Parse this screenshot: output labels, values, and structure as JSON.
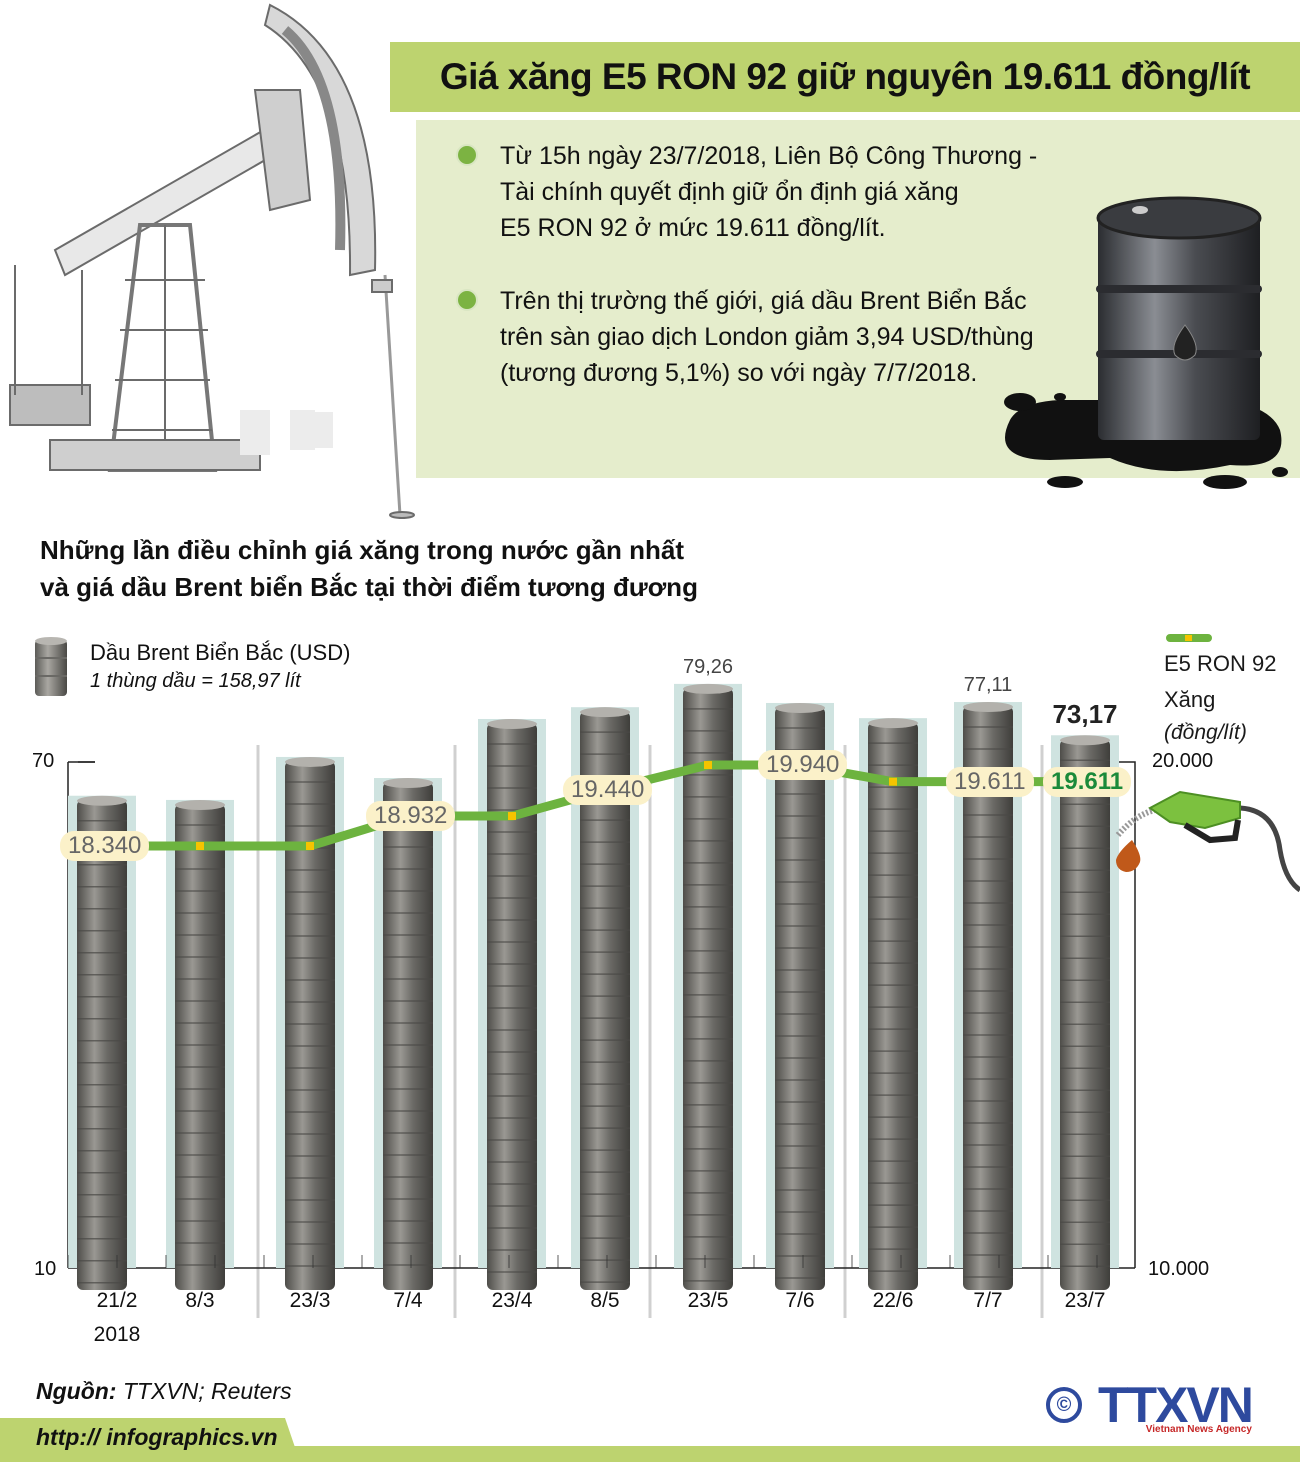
{
  "header": {
    "title": "Giá xăng E5 RON 92 giữ nguyên 19.611 đồng/lít",
    "bullets": [
      {
        "lines": [
          "Từ 15h ngày 23/7/2018, Liên Bộ Công Thương -",
          "Tài chính quyết định giữ ổn định giá xăng",
          "E5 RON 92 ở mức 19.611 đồng/lít."
        ]
      },
      {
        "lines": [
          "Trên thị trường thế giới, giá dầu Brent Biển Bắc",
          "trên sàn giao dịch London giảm 3,94 USD/thùng",
          "(tương đương 5,1%) so với ngày 7/7/2018."
        ]
      }
    ],
    "icons": [
      "pumpjack-illustration",
      "oil-barrel-spill-illustration"
    ]
  },
  "chart": {
    "title_lines": [
      "Những lần điều chỉnh giá xăng trong nước gần nhất",
      "và giá dầu Brent biển Bắc tại thời điểm tương đương"
    ],
    "legend_left": {
      "label": "Dầu Brent Biển Bắc (USD)",
      "note": "1 thùng dầu = 158,97 lít"
    },
    "legend_right": {
      "label1": "E5 RON 92",
      "label2": "Xăng",
      "unit": "(đồng/lít)"
    },
    "left_axis": {
      "top": "70",
      "bottom": "10"
    },
    "right_axis": {
      "top": "20.000",
      "bottom": "10.000"
    },
    "x_labels": [
      "21/2",
      "8/3",
      "23/3",
      "7/4",
      "23/4",
      "8/5",
      "23/5",
      "7/6",
      "22/6",
      "7/7",
      "23/7"
    ],
    "x_sublabel": "2018",
    "bar_value_labels": {
      "23/5": "79,26",
      "7/7": "77,11",
      "23/7": "73,17"
    },
    "price_labels": {
      "21/2": "18.340",
      "7/4": "18.932",
      "8/5": "19.440",
      "7/6": "19.940",
      "7/7": "19.611",
      "23/7": "19.611"
    }
  },
  "chart_data": {
    "type": "bar+line",
    "title": "Những lần điều chỉnh giá xăng trong nước gần nhất và giá dầu Brent biển Bắc tại thời điểm tương đương",
    "categories": [
      "21/2/2018",
      "8/3",
      "23/3",
      "7/4",
      "23/4",
      "8/5",
      "23/5",
      "7/6",
      "22/6",
      "7/7",
      "23/7"
    ],
    "series": [
      {
        "name": "Dầu Brent Biển Bắc (USD)",
        "type": "bar",
        "axis": "left",
        "values": [
          66.0,
          65.5,
          70.6,
          68.1,
          75.1,
          76.5,
          79.26,
          77.0,
          75.2,
          77.11,
          73.17
        ],
        "labeled": [
          false,
          false,
          false,
          false,
          false,
          false,
          true,
          false,
          false,
          true,
          true
        ]
      },
      {
        "name": "E5 RON 92 Xăng (đồng/lít)",
        "type": "line",
        "axis": "right",
        "values": [
          18340,
          18340,
          18340,
          18932,
          18932,
          19440,
          19940,
          19940,
          19611,
          19611,
          19611
        ],
        "labeled": [
          true,
          false,
          false,
          true,
          false,
          true,
          false,
          true,
          false,
          true,
          true
        ]
      }
    ],
    "left_axis": {
      "label": "USD",
      "ylim": [
        10,
        70
      ],
      "ticks": [
        10,
        70
      ]
    },
    "right_axis": {
      "label": "đồng/lít",
      "ylim": [
        10000,
        20000
      ],
      "ticks": [
        10000,
        20000
      ]
    },
    "legend": [
      "Dầu Brent Biển Bắc (USD) — 1 thùng dầu = 158,97 lít",
      "E5 RON 92 Xăng (đồng/lít)"
    ],
    "grid": false,
    "colors": {
      "bar": "#6e6e6a",
      "bar_bg": "#cfe3e0",
      "line": "#6db33f",
      "marker": "#f5c400",
      "label_bg": "#fbf1c9"
    }
  },
  "footer": {
    "source_label": "Nguồn:",
    "source_value": "TTXVN; Reuters",
    "url": "http:// infographics.vn",
    "logo_text": "TTXVN",
    "logo_sub": "Vietnam News Agency",
    "copyright": "©"
  },
  "colors": {
    "accent_green": "#bdd36f",
    "panel_bg": "#e5edcc",
    "bullet": "#7cb342",
    "logo_blue": "#2e4a9e"
  }
}
